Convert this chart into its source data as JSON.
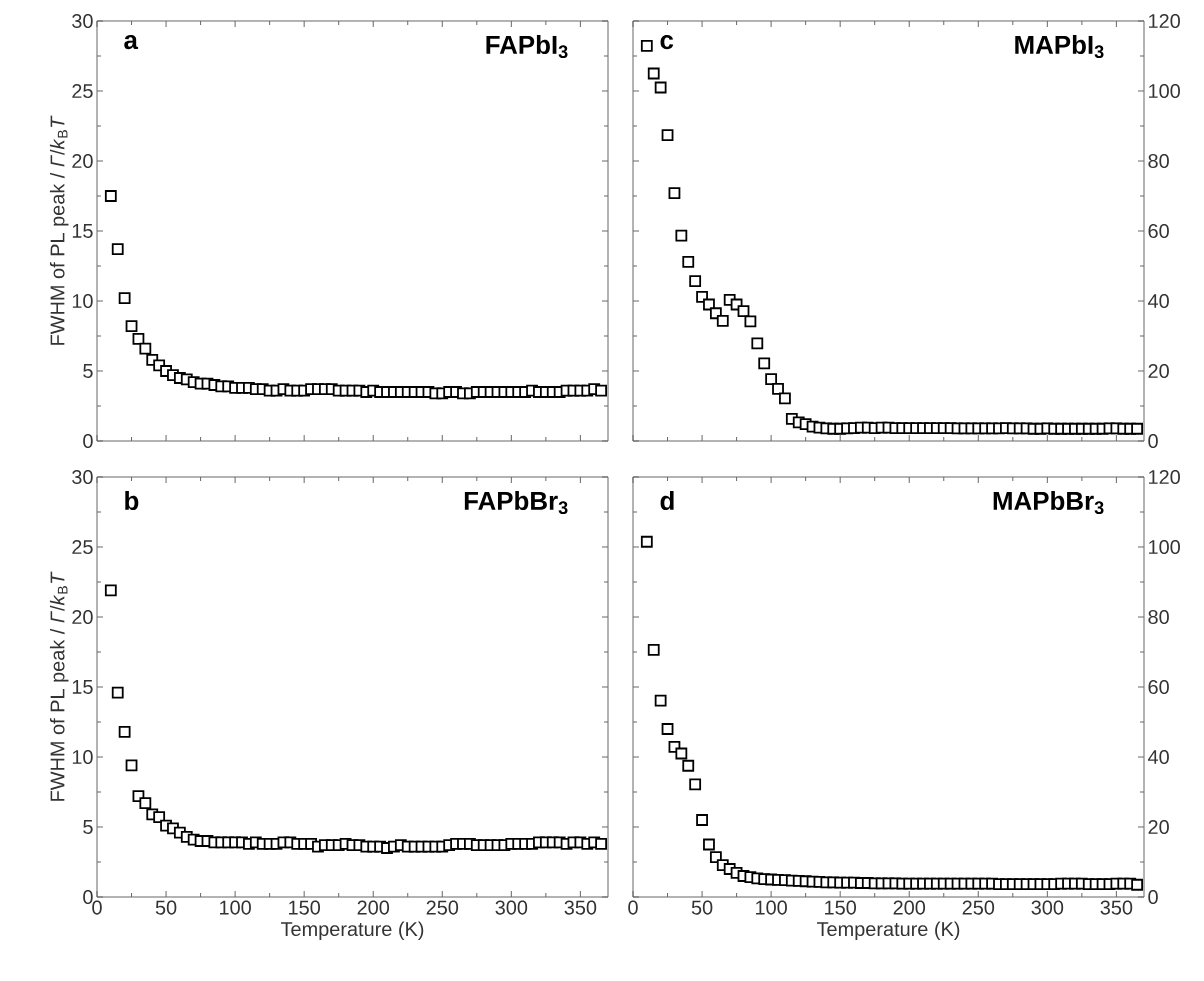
{
  "chart_data": [
    {
      "type": "scatter",
      "title": "FAPbI$_{3}$",
      "annotations": [
        "a"
      ],
      "ylabel": "FWHM of PL peak / *Γ*/*k*$_{B}$*T*",
      "marker": "square",
      "color": "#000000",
      "tick_labels": "y",
      "x": [
        10,
        15,
        20,
        25,
        30,
        35,
        40,
        45,
        50,
        55,
        60,
        65,
        70,
        75,
        80,
        85,
        90,
        95,
        100,
        105,
        110,
        115,
        120,
        125,
        130,
        135,
        140,
        145,
        150,
        155,
        160,
        165,
        170,
        175,
        180,
        185,
        190,
        195,
        200,
        205,
        210,
        215,
        220,
        225,
        230,
        235,
        240,
        245,
        250,
        255,
        260,
        265,
        270,
        275,
        280,
        285,
        290,
        295,
        300,
        305,
        310,
        315,
        320,
        325,
        330,
        335,
        340,
        345,
        350,
        355,
        360,
        365
      ],
      "values": [
        17.5,
        13.7,
        10.2,
        8.2,
        7.3,
        6.6,
        5.8,
        5.4,
        5.0,
        4.7,
        4.5,
        4.4,
        4.2,
        4.1,
        4.1,
        4.0,
        3.9,
        3.9,
        3.8,
        3.8,
        3.8,
        3.7,
        3.7,
        3.6,
        3.6,
        3.7,
        3.6,
        3.6,
        3.6,
        3.7,
        3.7,
        3.7,
        3.7,
        3.6,
        3.6,
        3.6,
        3.6,
        3.5,
        3.6,
        3.5,
        3.5,
        3.5,
        3.5,
        3.5,
        3.5,
        3.5,
        3.5,
        3.4,
        3.4,
        3.5,
        3.5,
        3.4,
        3.4,
        3.5,
        3.5,
        3.5,
        3.5,
        3.5,
        3.5,
        3.5,
        3.5,
        3.6,
        3.5,
        3.5,
        3.5,
        3.5,
        3.6,
        3.6,
        3.6,
        3.6,
        3.7,
        3.6
      ],
      "xlim": [
        0,
        370
      ],
      "ylim": [
        0,
        30
      ],
      "xticks": [
        0,
        50,
        100,
        150,
        200,
        250,
        300,
        350
      ],
      "yticks": [
        0,
        5,
        10,
        15,
        20,
        25,
        30
      ]
    },
    {
      "type": "scatter",
      "title": "MAPbI$_{3}$",
      "annotations": [
        "c"
      ],
      "marker": "square",
      "color": "#000000",
      "tick_labels": "y",
      "x": [
        10,
        15,
        20,
        25,
        30,
        35,
        40,
        45,
        50,
        55,
        60,
        65,
        70,
        75,
        80,
        85,
        90,
        95,
        100,
        105,
        110,
        115,
        120,
        125,
        130,
        135,
        140,
        145,
        150,
        155,
        160,
        165,
        170,
        175,
        180,
        185,
        190,
        195,
        200,
        205,
        210,
        215,
        220,
        225,
        230,
        235,
        240,
        245,
        250,
        255,
        260,
        265,
        270,
        275,
        280,
        285,
        290,
        295,
        300,
        305,
        310,
        315,
        320,
        325,
        330,
        335,
        340,
        345,
        350,
        355,
        360,
        365
      ],
      "values": [
        112.9,
        105.0,
        101.0,
        87.4,
        70.8,
        58.7,
        51.2,
        45.7,
        41.2,
        39.0,
        36.5,
        34.3,
        40.3,
        39.0,
        37.1,
        34.2,
        27.9,
        22.2,
        17.7,
        14.9,
        12.2,
        6.3,
        5.3,
        4.8,
        4.1,
        3.8,
        3.6,
        3.5,
        3.5,
        3.6,
        3.7,
        3.8,
        3.8,
        3.7,
        3.8,
        3.8,
        3.7,
        3.7,
        3.7,
        3.7,
        3.7,
        3.7,
        3.7,
        3.7,
        3.7,
        3.6,
        3.6,
        3.6,
        3.6,
        3.6,
        3.6,
        3.6,
        3.7,
        3.6,
        3.6,
        3.6,
        3.5,
        3.5,
        3.6,
        3.5,
        3.5,
        3.5,
        3.5,
        3.5,
        3.5,
        3.5,
        3.5,
        3.6,
        3.6,
        3.5,
        3.5,
        3.5
      ],
      "xlim": [
        0,
        370
      ],
      "ylim": [
        0,
        120
      ],
      "xticks": [
        0,
        50,
        100,
        150,
        200,
        250,
        300,
        350
      ],
      "yticks": [
        0,
        20,
        40,
        60,
        80,
        100,
        120
      ]
    },
    {
      "type": "scatter",
      "title": "FAPbBr$_{3}$",
      "annotations": [
        "b"
      ],
      "xlabel": "Temperature (K)",
      "ylabel": "FWHM of PL peak / *Γ*/*k*$_{B}$*T*",
      "marker": "square",
      "color": "#000000",
      "x": [
        10,
        15,
        20,
        25,
        30,
        35,
        40,
        45,
        50,
        55,
        60,
        65,
        70,
        75,
        80,
        85,
        90,
        95,
        100,
        105,
        110,
        115,
        120,
        125,
        130,
        135,
        140,
        145,
        150,
        155,
        160,
        165,
        170,
        175,
        180,
        185,
        190,
        195,
        200,
        205,
        210,
        215,
        220,
        225,
        230,
        235,
        240,
        245,
        250,
        255,
        260,
        265,
        270,
        275,
        280,
        285,
        290,
        295,
        300,
        305,
        310,
        315,
        320,
        325,
        330,
        335,
        340,
        345,
        350,
        355,
        360,
        365
      ],
      "values": [
        21.9,
        14.6,
        11.8,
        9.4,
        7.2,
        6.7,
        5.9,
        5.7,
        5.1,
        4.9,
        4.6,
        4.3,
        4.1,
        4.0,
        4.0,
        3.9,
        3.9,
        3.9,
        3.9,
        3.9,
        3.8,
        3.9,
        3.8,
        3.8,
        3.8,
        3.9,
        3.9,
        3.8,
        3.8,
        3.8,
        3.6,
        3.7,
        3.7,
        3.7,
        3.8,
        3.7,
        3.7,
        3.6,
        3.6,
        3.6,
        3.5,
        3.6,
        3.7,
        3.6,
        3.6,
        3.6,
        3.6,
        3.6,
        3.6,
        3.7,
        3.8,
        3.8,
        3.8,
        3.7,
        3.7,
        3.7,
        3.7,
        3.7,
        3.8,
        3.8,
        3.8,
        3.8,
        3.9,
        3.9,
        3.9,
        3.9,
        3.8,
        3.9,
        3.9,
        3.8,
        3.9,
        3.8
      ],
      "xlim": [
        0,
        370
      ],
      "ylim": [
        0,
        30
      ],
      "xticks": [
        0,
        50,
        100,
        150,
        200,
        250,
        300,
        350
      ],
      "yticks": [
        0,
        5,
        10,
        15,
        20,
        25,
        30
      ]
    },
    {
      "type": "scatter",
      "title": "MAPbBr$_{3}$",
      "annotations": [
        "d"
      ],
      "xlabel": "Temperature (K)",
      "marker": "square",
      "color": "#000000",
      "x": [
        10,
        15,
        20,
        25,
        30,
        35,
        40,
        45,
        50,
        55,
        60,
        65,
        70,
        75,
        80,
        85,
        90,
        95,
        100,
        105,
        110,
        115,
        120,
        125,
        130,
        135,
        140,
        145,
        150,
        155,
        160,
        165,
        170,
        175,
        180,
        185,
        190,
        195,
        200,
        205,
        210,
        215,
        220,
        225,
        230,
        235,
        240,
        245,
        250,
        255,
        260,
        265,
        270,
        275,
        280,
        285,
        290,
        295,
        300,
        305,
        310,
        315,
        320,
        325,
        330,
        335,
        340,
        345,
        350,
        355,
        360,
        365
      ],
      "values": [
        101.5,
        70.6,
        56.1,
        48.0,
        42.9,
        41.0,
        37.5,
        32.2,
        22.0,
        15.0,
        11.4,
        9.1,
        8.0,
        6.9,
        6.0,
        5.7,
        5.3,
        5.1,
        5.0,
        4.9,
        4.8,
        4.7,
        4.6,
        4.5,
        4.4,
        4.3,
        4.2,
        4.2,
        4.1,
        4.1,
        4.1,
        4.0,
        4.0,
        3.9,
        3.9,
        3.9,
        3.9,
        3.8,
        3.8,
        3.8,
        3.8,
        3.8,
        3.8,
        3.8,
        3.8,
        3.8,
        3.8,
        3.8,
        3.8,
        3.8,
        3.8,
        3.7,
        3.7,
        3.7,
        3.7,
        3.7,
        3.7,
        3.7,
        3.7,
        3.7,
        3.8,
        3.8,
        3.8,
        3.8,
        3.7,
        3.7,
        3.7,
        3.7,
        3.8,
        3.8,
        3.8,
        3.5
      ],
      "xlim": [
        0,
        370
      ],
      "ylim": [
        0,
        120
      ],
      "xticks": [
        0,
        50,
        100,
        150,
        200,
        250,
        300,
        350
      ],
      "yticks": [
        0,
        20,
        40,
        60,
        80,
        100,
        120
      ]
    }
  ]
}
